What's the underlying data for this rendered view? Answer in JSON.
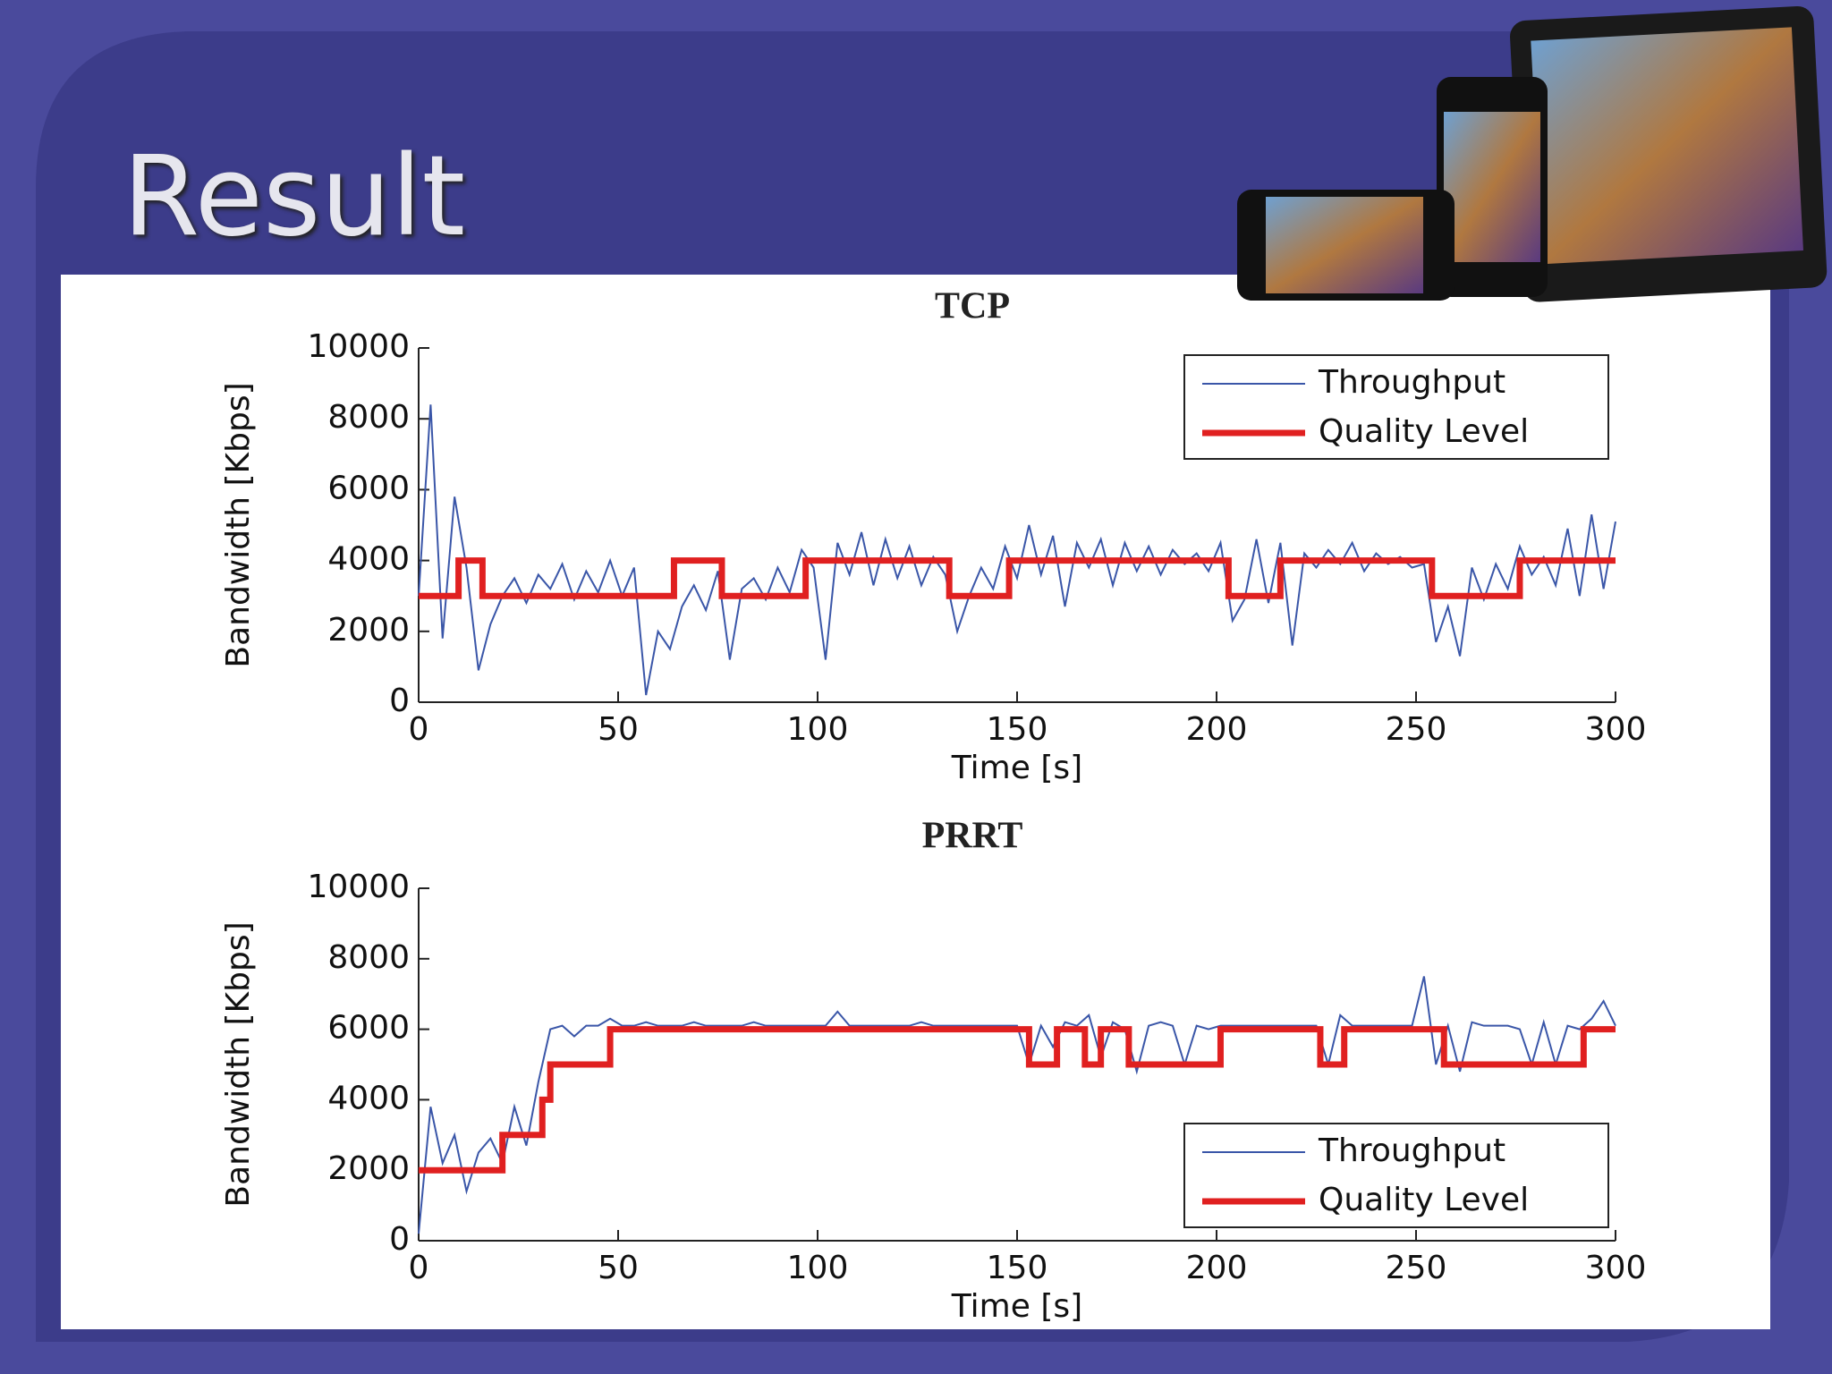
{
  "slide": {
    "title": "Result"
  },
  "chart_data": [
    {
      "type": "line",
      "title": "TCP",
      "xlabel": "Time [s]",
      "ylabel": "Bandwidth [Kbps]",
      "xlim": [
        0,
        300
      ],
      "ylim": [
        0,
        10000
      ],
      "xticks": [
        0,
        50,
        100,
        150,
        200,
        250,
        300
      ],
      "yticks": [
        0,
        2000,
        4000,
        6000,
        8000,
        10000
      ],
      "legend": "upper right",
      "series": [
        {
          "name": "Throughput",
          "color": "#3a56a8",
          "width": 2,
          "x": [
            0,
            3,
            6,
            9,
            12,
            15,
            18,
            21,
            24,
            27,
            30,
            33,
            36,
            39,
            42,
            45,
            48,
            51,
            54,
            57,
            60,
            63,
            66,
            69,
            72,
            75,
            78,
            81,
            84,
            87,
            90,
            93,
            96,
            99,
            102,
            105,
            108,
            111,
            114,
            117,
            120,
            123,
            126,
            129,
            132,
            135,
            138,
            141,
            144,
            147,
            150,
            153,
            156,
            159,
            162,
            165,
            168,
            171,
            174,
            177,
            180,
            183,
            186,
            189,
            192,
            195,
            198,
            201,
            204,
            207,
            210,
            213,
            216,
            219,
            222,
            225,
            228,
            231,
            234,
            237,
            240,
            243,
            246,
            249,
            252,
            255,
            258,
            261,
            264,
            267,
            270,
            273,
            276,
            279,
            282,
            285,
            288,
            291,
            294,
            297,
            300
          ],
          "values": [
            3000,
            8400,
            1800,
            5800,
            3800,
            900,
            2200,
            3000,
            3500,
            2800,
            3600,
            3200,
            3900,
            2900,
            3700,
            3100,
            4000,
            3000,
            3800,
            200,
            2000,
            1500,
            2700,
            3300,
            2600,
            3700,
            1200,
            3200,
            3500,
            2900,
            3800,
            3100,
            4300,
            3800,
            1200,
            4500,
            3600,
            4800,
            3300,
            4600,
            3500,
            4400,
            3300,
            4100,
            3600,
            2000,
            3000,
            3800,
            3200,
            4400,
            3500,
            5000,
            3600,
            4700,
            2700,
            4500,
            3800,
            4600,
            3300,
            4500,
            3700,
            4400,
            3600,
            4300,
            3900,
            4200,
            3700,
            4500,
            2300,
            2900,
            4600,
            2800,
            4500,
            1600,
            4200,
            3800,
            4300,
            3900,
            4500,
            3700,
            4200,
            3900,
            4100,
            3800,
            3900,
            1700,
            2700,
            1300,
            3800,
            2900,
            3900,
            3200,
            4400,
            3600,
            4100,
            3300,
            4900,
            3000,
            5300,
            3200,
            5100
          ]
        },
        {
          "name": "Quality Level",
          "color": "#e02020",
          "width": 7,
          "x": [
            0,
            10,
            10,
            16,
            16,
            64,
            64,
            76,
            76,
            97,
            97,
            133,
            133,
            148,
            148,
            203,
            203,
            216,
            216,
            254,
            254,
            276,
            276,
            300
          ],
          "values": [
            3000,
            3000,
            4000,
            4000,
            3000,
            3000,
            4000,
            4000,
            3000,
            3000,
            4000,
            4000,
            3000,
            3000,
            4000,
            4000,
            3000,
            3000,
            4000,
            4000,
            3000,
            3000,
            4000,
            4000
          ]
        }
      ]
    },
    {
      "type": "line",
      "title": "PRRT",
      "xlabel": "Time [s]",
      "ylabel": "Bandwidth [Kbps]",
      "xlim": [
        0,
        300
      ],
      "ylim": [
        0,
        10000
      ],
      "xticks": [
        0,
        50,
        100,
        150,
        200,
        250,
        300
      ],
      "yticks": [
        0,
        2000,
        4000,
        6000,
        8000,
        10000
      ],
      "legend": "lower right",
      "series": [
        {
          "name": "Throughput",
          "color": "#3a56a8",
          "width": 2,
          "x": [
            0,
            3,
            6,
            9,
            12,
            15,
            18,
            21,
            24,
            27,
            30,
            33,
            36,
            39,
            42,
            45,
            48,
            51,
            54,
            57,
            60,
            63,
            66,
            69,
            72,
            75,
            78,
            81,
            84,
            87,
            90,
            93,
            96,
            99,
            102,
            105,
            108,
            111,
            114,
            117,
            120,
            123,
            126,
            129,
            132,
            135,
            138,
            141,
            144,
            147,
            150,
            153,
            156,
            159,
            162,
            165,
            168,
            171,
            174,
            177,
            180,
            183,
            186,
            189,
            192,
            195,
            198,
            201,
            204,
            207,
            210,
            213,
            216,
            219,
            222,
            225,
            228,
            231,
            234,
            237,
            240,
            243,
            246,
            249,
            252,
            255,
            258,
            261,
            264,
            267,
            270,
            273,
            276,
            279,
            282,
            285,
            288,
            291,
            294,
            297,
            300
          ],
          "values": [
            200,
            3800,
            2200,
            3000,
            1400,
            2500,
            2900,
            2200,
            3800,
            2700,
            4500,
            6000,
            6100,
            5800,
            6100,
            6100,
            6300,
            6100,
            6100,
            6200,
            6100,
            6100,
            6100,
            6200,
            6100,
            6100,
            6100,
            6100,
            6200,
            6100,
            6100,
            6100,
            6100,
            6100,
            6100,
            6500,
            6100,
            6100,
            6100,
            6100,
            6100,
            6100,
            6200,
            6100,
            6100,
            6100,
            6100,
            6100,
            6100,
            6100,
            6100,
            5000,
            6100,
            5500,
            6200,
            6100,
            6400,
            5200,
            6200,
            6000,
            4800,
            6100,
            6200,
            6100,
            5000,
            6100,
            6000,
            6100,
            6100,
            6100,
            6100,
            6100,
            6100,
            6100,
            6100,
            6100,
            5000,
            6400,
            6100,
            6100,
            6100,
            6100,
            6100,
            6100,
            7500,
            5000,
            6100,
            4800,
            6200,
            6100,
            6100,
            6100,
            6000,
            5000,
            6200,
            5000,
            6100,
            6000,
            6300,
            6800,
            6100
          ]
        },
        {
          "name": "Quality Level",
          "color": "#e02020",
          "width": 7,
          "x": [
            0,
            21,
            21,
            31,
            31,
            33,
            33,
            48,
            48,
            153,
            153,
            160,
            160,
            167,
            167,
            171,
            171,
            178,
            178,
            201,
            201,
            226,
            226,
            232,
            232,
            257,
            257,
            292,
            292,
            300
          ],
          "values": [
            2000,
            2000,
            3000,
            3000,
            4000,
            4000,
            5000,
            5000,
            6000,
            6000,
            5000,
            5000,
            6000,
            6000,
            5000,
            5000,
            6000,
            6000,
            5000,
            5000,
            6000,
            6000,
            5000,
            5000,
            6000,
            6000,
            5000,
            5000,
            6000,
            6000
          ]
        }
      ]
    }
  ]
}
